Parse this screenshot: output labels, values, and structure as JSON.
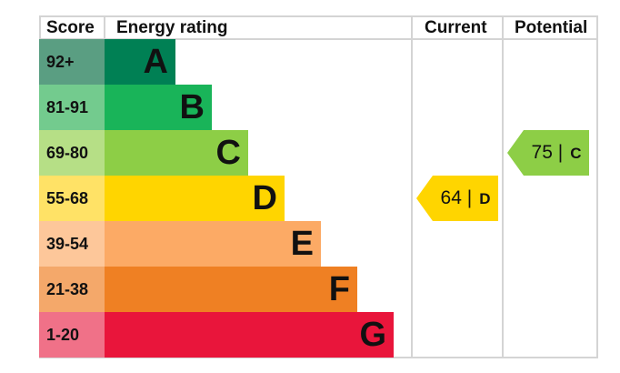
{
  "header": {
    "score": "Score",
    "rating": "Energy rating",
    "current": "Current",
    "potential": "Potential"
  },
  "chart_data": {
    "type": "table",
    "bands": [
      {
        "letter": "A",
        "range": "92+",
        "color": "#008054",
        "score_color": "#5a9e82"
      },
      {
        "letter": "B",
        "range": "81-91",
        "color": "#19b459",
        "score_color": "#73cb8e"
      },
      {
        "letter": "C",
        "range": "69-80",
        "color": "#8dce46",
        "score_color": "#b6df86"
      },
      {
        "letter": "D",
        "range": "55-68",
        "color": "#ffd500",
        "score_color": "#ffe266"
      },
      {
        "letter": "E",
        "range": "39-54",
        "color": "#fcaa65",
        "score_color": "#fdc79a"
      },
      {
        "letter": "F",
        "range": "21-38",
        "color": "#ef8023",
        "score_color": "#f4a86a"
      },
      {
        "letter": "G",
        "range": "1-20",
        "color": "#e9153b",
        "score_color": "#f07188"
      }
    ],
    "current": {
      "value": "64",
      "letter": "D",
      "sep": "|",
      "color": "#ffd500"
    },
    "potential": {
      "value": "75",
      "letter": "C",
      "sep": "|",
      "color": "#8dce46"
    }
  }
}
